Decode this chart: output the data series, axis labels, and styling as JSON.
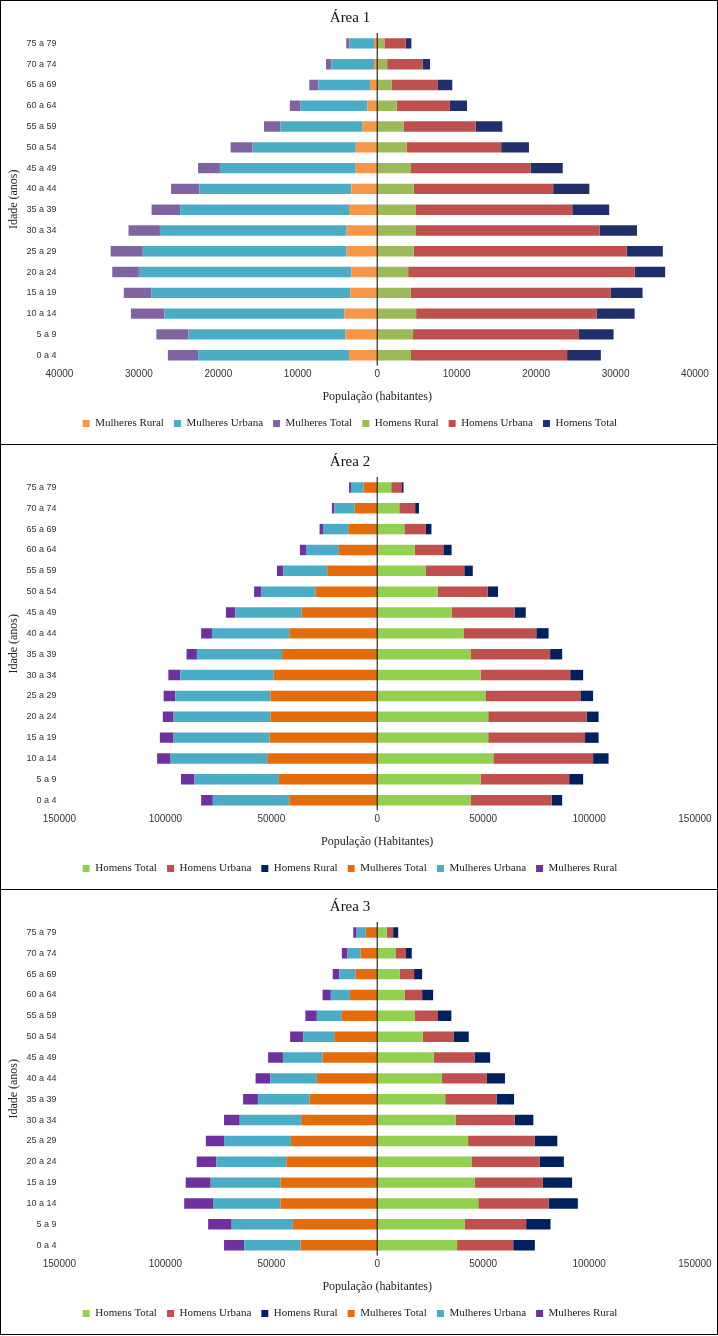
{
  "chart_data": [
    {
      "type": "bar",
      "orientation": "horizontal",
      "stacked": true,
      "title": "Área 1",
      "xlabel": "População (habitantes)",
      "ylabel": "Idade (anos)",
      "legend": "bottom",
      "categories": [
        "75 a 79",
        "70 a 74",
        "65 a 69",
        "60 a 64",
        "55 a 59",
        "50 a 54",
        "45 a 49",
        "40 a 44",
        "35 a 39",
        "30 a 34",
        "25 a 29",
        "20 a 24",
        "15 a 19",
        "10 a 14",
        "5 a 9",
        "0 a 4"
      ],
      "xlim": [
        -40000,
        40000
      ],
      "xticks": [
        {
          "value": -40000,
          "label": "40000"
        },
        {
          "value": -30000,
          "label": "30000"
        },
        {
          "value": -20000,
          "label": "20000"
        },
        {
          "value": -10000,
          "label": "10000"
        },
        0,
        10000,
        20000,
        30000,
        40000
      ],
      "series": [
        {
          "name": "Mulheres Rural",
          "color": "#f79646",
          "values": [
            -400,
            -400,
            -900,
            -1250,
            -1900,
            -2700,
            -2700,
            -3250,
            -3550,
            -3850,
            -3850,
            -3250,
            -3400,
            -4150,
            -4000,
            -3550
          ]
        },
        {
          "name": "Mulheres Urbana",
          "color": "#4bacc6",
          "values": [
            -3100,
            -5350,
            -6500,
            -8450,
            -10300,
            -13000,
            -17100,
            -19150,
            -21250,
            -23500,
            -25650,
            -26750,
            -25000,
            -22650,
            -19750,
            -19000
          ]
        },
        {
          "name": "Mulheres Total",
          "color": "#8064a2",
          "values": [
            -400,
            -700,
            -1150,
            -1300,
            -2050,
            -2750,
            -2750,
            -3550,
            -3600,
            -3950,
            -4050,
            -3350,
            -3500,
            -4200,
            -4050,
            -3800
          ]
        },
        {
          "name": "Homens Rural",
          "color": "#9bbb59",
          "values": [
            900,
            1250,
            1800,
            2450,
            3350,
            3700,
            4250,
            4600,
            4800,
            4800,
            4600,
            3900,
            4200,
            4900,
            4500,
            4250
          ]
        },
        {
          "name": "Homens Urbana",
          "color": "#c0504d",
          "values": [
            2700,
            4450,
            5850,
            6700,
            9050,
            11900,
            15050,
            17550,
            19750,
            23200,
            26800,
            28500,
            25200,
            22700,
            20900,
            19650
          ]
        },
        {
          "name": "Homens Total",
          "color": "#1f2f6b",
          "values": [
            700,
            950,
            1800,
            2150,
            3350,
            3500,
            4050,
            4550,
            4650,
            4700,
            4550,
            3850,
            4000,
            4800,
            4350,
            4250
          ]
        }
      ]
    },
    {
      "type": "bar",
      "orientation": "horizontal",
      "stacked": true,
      "title": "Área 2",
      "xlabel": "População (Habitantes)",
      "ylabel": "Idade (anos)",
      "legend": "bottom",
      "categories": [
        "75 a 79",
        "70 a 74",
        "65 a 69",
        "60 a 64",
        "55 a 59",
        "50 a 54",
        "45 a 49",
        "40 a 44",
        "35 a 39",
        "30 a 34",
        "25 a 29",
        "20 a 24",
        "15 a 19",
        "10 a 14",
        "5 a 9",
        "0 a 4"
      ],
      "xlim": [
        -150000,
        150000
      ],
      "xticks": [
        {
          "value": -150000,
          "label": "150000"
        },
        {
          "value": -100000,
          "label": "100000"
        },
        {
          "value": -50000,
          "label": "50000"
        },
        0,
        50000,
        100000,
        150000
      ],
      "series": [
        {
          "name": "Homens Total",
          "color": "#92d050",
          "values": [
            6600,
            10400,
            12800,
            17700,
            22800,
            28500,
            35100,
            40700,
            44000,
            48800,
            51100,
            52400,
            52400,
            54800,
            48800,
            44000
          ]
        },
        {
          "name": "Homens Urbana",
          "color": "#c0504d",
          "values": [
            5100,
            7500,
            10200,
            13500,
            18300,
            23700,
            29700,
            34400,
            37600,
            42300,
            44800,
            46400,
            45700,
            47100,
            41800,
            38400
          ]
        },
        {
          "name": "Homens Rural",
          "color": "#002060",
          "values": [
            700,
            1800,
            2600,
            3900,
            4000,
            4800,
            5300,
            5800,
            5700,
            6100,
            6000,
            5700,
            6400,
            7300,
            6600,
            4900
          ]
        },
        {
          "name": "Mulheres Total",
          "color": "#e46c0a",
          "values": [
            -6400,
            -10600,
            -13700,
            -18100,
            -23600,
            -29200,
            -35600,
            -41500,
            -44900,
            -48800,
            -50400,
            -50400,
            -50800,
            -51900,
            -46400,
            -41500
          ]
        },
        {
          "name": "Mulheres Urbana",
          "color": "#4bacc6",
          "values": [
            -6000,
            -9700,
            -11900,
            -15500,
            -20800,
            -25400,
            -31400,
            -36500,
            -40200,
            -44200,
            -44900,
            -45700,
            -45300,
            -45600,
            -39800,
            -36100
          ]
        },
        {
          "name": "Mulheres Rural",
          "color": "#7030a0",
          "values": [
            -900,
            -1100,
            -1600,
            -2900,
            -2900,
            -3500,
            -4400,
            -5100,
            -4900,
            -5600,
            -5500,
            -5100,
            -6500,
            -6400,
            -6400,
            -5500
          ]
        }
      ]
    },
    {
      "type": "bar",
      "orientation": "horizontal",
      "stacked": true,
      "title": "Área 3",
      "xlabel": "População (habitantes)",
      "ylabel": "Idade (anos)",
      "legend": "bottom",
      "categories": [
        "75 a 79",
        "70 a 74",
        "65 a 69",
        "60 a 64",
        "55 a 59",
        "50 a 54",
        "45 a 49",
        "40 a 44",
        "35 a 39",
        "30 a 34",
        "25 a 29",
        "20 a 24",
        "15 a 19",
        "10 a 14",
        "5 a 9",
        "0 a 4"
      ],
      "xlim": [
        -150000,
        150000
      ],
      "xticks": [
        {
          "value": -150000,
          "label": "150000"
        },
        {
          "value": -100000,
          "label": "100000"
        },
        {
          "value": -50000,
          "label": "50000"
        },
        0,
        50000,
        100000,
        150000
      ],
      "series": [
        {
          "name": "Homens Total",
          "color": "#92d050",
          "values": [
            4500,
            8600,
            10600,
            13100,
            17600,
            21500,
            26700,
            30500,
            32100,
            37100,
            42900,
            44500,
            46100,
            47700,
            41400,
            37700
          ]
        },
        {
          "name": "Homens Urbana",
          "color": "#c0504d",
          "values": [
            3000,
            5000,
            6800,
            8100,
            11100,
            14700,
            19200,
            21300,
            24200,
            27800,
            31500,
            32100,
            32100,
            33200,
            28900,
            26500
          ]
        },
        {
          "name": "Homens Rural",
          "color": "#002060",
          "values": [
            2400,
            2700,
            3800,
            5200,
            6300,
            7000,
            7400,
            8500,
            8300,
            8800,
            10600,
            11500,
            13800,
            13800,
            11500,
            10200
          ]
        },
        {
          "name": "Mulheres Total",
          "color": "#e46c0a",
          "values": [
            -5400,
            -7900,
            -10200,
            -12900,
            -16700,
            -20300,
            -25800,
            -28500,
            -31900,
            -35900,
            -40700,
            -42900,
            -45700,
            -45700,
            -39800,
            -36200
          ]
        },
        {
          "name": "Mulheres Urbana",
          "color": "#4bacc6",
          "values": [
            -4300,
            -6100,
            -7700,
            -9000,
            -11800,
            -14500,
            -18700,
            -21900,
            -24400,
            -29000,
            -31600,
            -33000,
            -32900,
            -31800,
            -28900,
            -26600
          ]
        },
        {
          "name": "Mulheres Rural",
          "color": "#7030a0",
          "values": [
            -1600,
            -2700,
            -3100,
            -3900,
            -5400,
            -6300,
            -7000,
            -7000,
            -7000,
            -7400,
            -8600,
            -9300,
            -11800,
            -13600,
            -11100,
            -9500
          ]
        }
      ]
    }
  ]
}
